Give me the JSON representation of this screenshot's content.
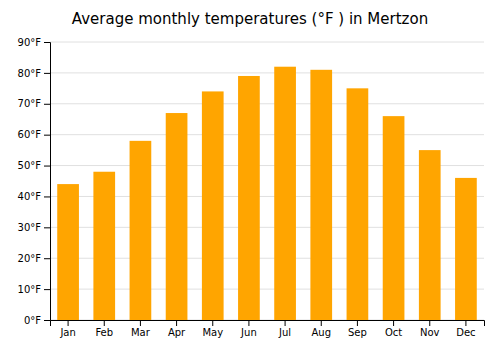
{
  "chart_data": {
    "type": "bar",
    "title": "Average monthly temperatures (°F ) in Mertzon",
    "categories": [
      "Jan",
      "Feb",
      "Mar",
      "Apr",
      "May",
      "Jun",
      "Jul",
      "Aug",
      "Sep",
      "Oct",
      "Nov",
      "Dec"
    ],
    "values": [
      44,
      48,
      58,
      67,
      74,
      79,
      82,
      81,
      75,
      66,
      55,
      46
    ],
    "color": "#FFA500",
    "ylim": [
      0,
      90
    ],
    "yticks": [
      {
        "value": 0,
        "label": "0°F"
      },
      {
        "value": 10,
        "label": "10°F"
      },
      {
        "value": 20,
        "label": "20°F"
      },
      {
        "value": 30,
        "label": "30°F"
      },
      {
        "value": 40,
        "label": "40°F"
      },
      {
        "value": 50,
        "label": "50°F"
      },
      {
        "value": 60,
        "label": "60°F"
      },
      {
        "value": 70,
        "label": "70°F"
      },
      {
        "value": 80,
        "label": "80°F"
      },
      {
        "value": 90,
        "label": "90°F"
      }
    ],
    "grid": true
  }
}
